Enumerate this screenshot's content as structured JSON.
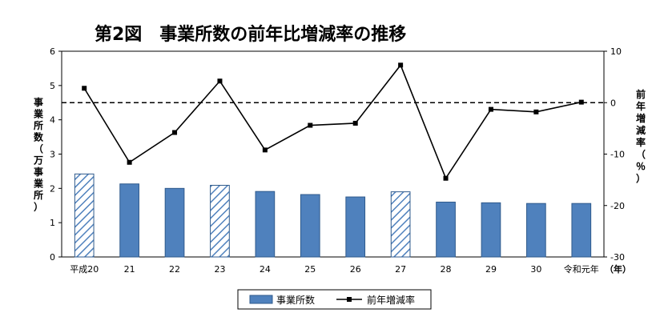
{
  "chart_data": {
    "type": "bar+line",
    "title": "第2図　事業所数の前年比増減率の推移",
    "categories": [
      "平成20",
      "21",
      "22",
      "23",
      "24",
      "25",
      "26",
      "27",
      "28",
      "29",
      "30",
      "令和元年"
    ],
    "x_unit": "（年）",
    "series": [
      {
        "name": "事業所数",
        "type": "bar",
        "axis": "left",
        "values": [
          2.42,
          2.13,
          2.0,
          2.09,
          1.91,
          1.82,
          1.75,
          1.9,
          1.6,
          1.58,
          1.56,
          1.56
        ],
        "hatched_categories": [
          "平成20",
          "23",
          "27"
        ]
      },
      {
        "name": "前年増減率",
        "type": "line",
        "axis": "right",
        "values": [
          2.8,
          -11.6,
          -5.8,
          4.2,
          -9.2,
          -4.4,
          -4.0,
          7.3,
          -14.7,
          -1.3,
          -1.8,
          0.1
        ]
      }
    ],
    "left_axis": {
      "label": "事業所数（万事業所）",
      "min": 0,
      "max": 6,
      "ticks": [
        "0",
        "1",
        "2",
        "3",
        "4",
        "5",
        "6"
      ]
    },
    "right_axis": {
      "label": "前年増減率（％）",
      "min": -30,
      "max": 10,
      "ticks": [
        "-30",
        "-20",
        "-10",
        "0",
        "10"
      ]
    },
    "reference_line": {
      "axis": "right",
      "value": 0,
      "style": "dashed"
    },
    "legend": {
      "position": "bottom",
      "items": [
        "事業所数",
        "前年増減率"
      ]
    },
    "grid": false,
    "colors": {
      "bar_fill": "#4f81bd",
      "bar_stroke": "#2f5a8c",
      "hatch": "#4f81bd",
      "line": "#000000",
      "marker": "#000000"
    }
  }
}
